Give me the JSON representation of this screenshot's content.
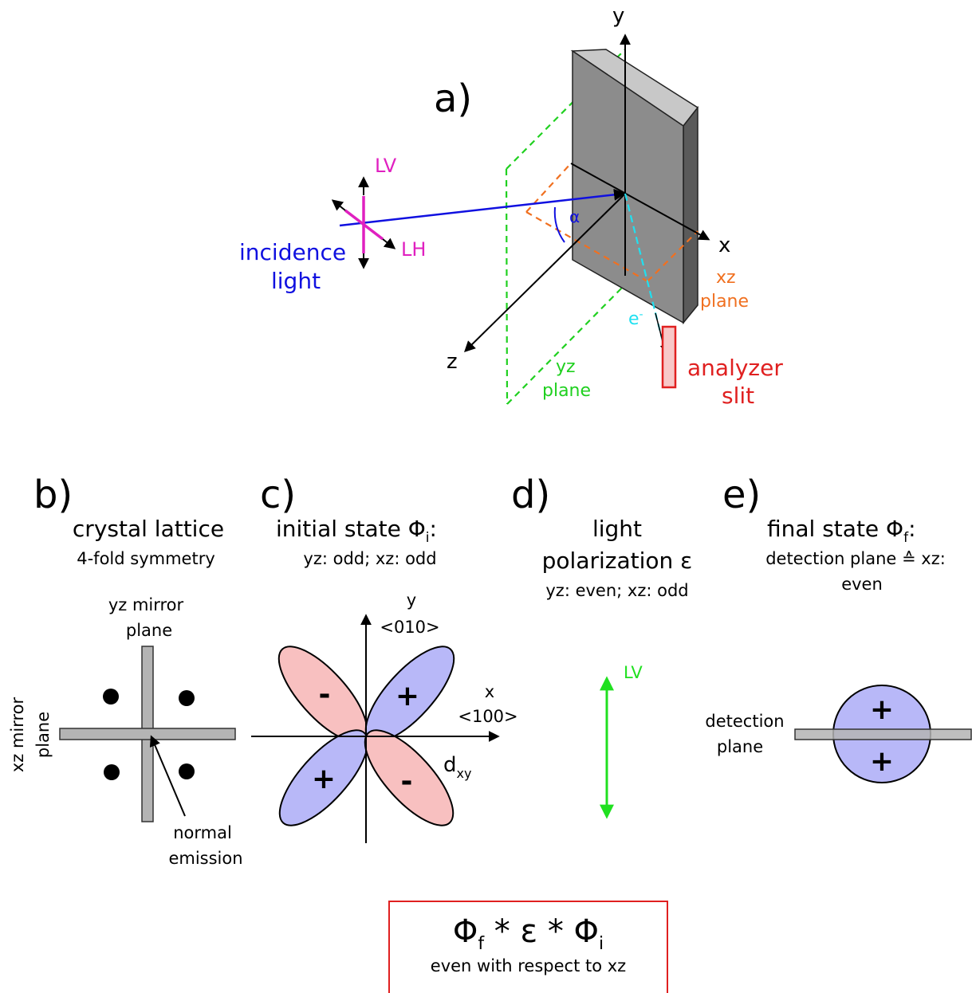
{
  "panel_a": {
    "label": "a)",
    "axis_x": "x",
    "axis_y": "y",
    "axis_z": "z",
    "lv": "LV",
    "lh": "LH",
    "incidence_1": "incidence",
    "incidence_2": "light",
    "alpha": "α",
    "electron": "e",
    "electron_sup": "-",
    "xz_plane_1": "xz",
    "xz_plane_2": "plane",
    "yz_plane_1": "yz",
    "yz_plane_2": "plane",
    "analyzer_1": "analyzer",
    "analyzer_2": "slit"
  },
  "panel_b": {
    "label": "b)",
    "title": "crystal lattice",
    "subtitle": "4-fold symmetry",
    "yz_mirror_1": "yz mirror",
    "yz_mirror_2": "plane",
    "xz_mirror_1": "xz mirror",
    "xz_mirror_2": "plane",
    "normal_1": "normal",
    "normal_2": "emission"
  },
  "panel_c": {
    "label": "c)",
    "title_text": "initial state Φ",
    "title_sub": "i",
    "title_end": ":",
    "subtitle": "yz: odd; xz: odd",
    "y_label": "y",
    "y_dir": "<010>",
    "x_label": "x",
    "x_dir": "<100>",
    "orbital": "d",
    "orbital_sub": "xy",
    "lobe_plus": "+",
    "lobe_minus": "-"
  },
  "panel_d": {
    "label": "d)",
    "title_1": "light",
    "title_2": "polarization ε",
    "subtitle": "yz: even; xz: odd",
    "lv": "LV"
  },
  "panel_e": {
    "label": "e)",
    "title_text": "final state Φ",
    "title_sub": "f",
    "title_end": ":",
    "subtitle_1": "detection plane ≙ xz:",
    "subtitle_2": "even",
    "detection_1": "detection",
    "detection_2": "plane",
    "plus": "+"
  },
  "formula": {
    "phi_f": "Φ",
    "phi_f_sub": "f",
    "op1": " * ε * ",
    "phi_i": "Φ",
    "phi_i_sub": "i",
    "caption": "even with respect to xz"
  },
  "colors": {
    "incidence": "#1010e0",
    "polarization": "#e020c0",
    "xz_plane": "#f07020",
    "yz_plane": "#20d020",
    "electron": "#20e0f0",
    "analyzer": "#e02020",
    "lobe_plus": "#b8b8f8",
    "lobe_minus": "#f8c0c0",
    "lv_arrow": "#20e020"
  }
}
